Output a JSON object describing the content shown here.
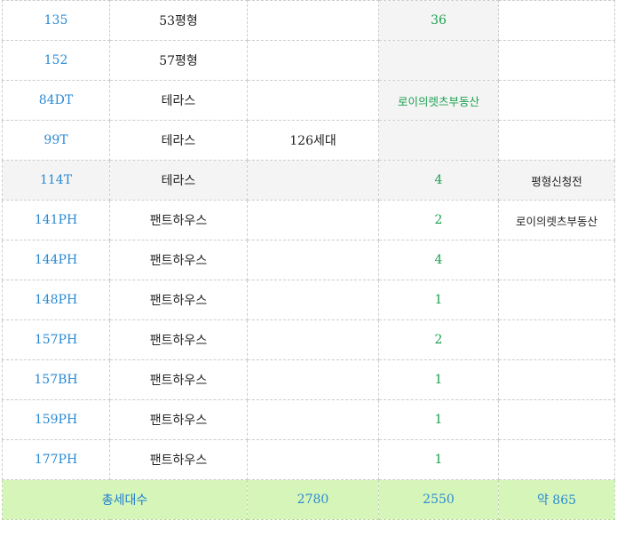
{
  "rows": [
    {
      "type": "135",
      "name": "53평형",
      "c3": "",
      "c4": "36",
      "c5": ""
    },
    {
      "type": "152",
      "name": "57평형",
      "c3": "",
      "c4": "",
      "c5": ""
    },
    {
      "type": "84DT",
      "name": "테라스",
      "c3": "",
      "c4": "로이의렛츠부동산",
      "c5": ""
    },
    {
      "type": "99T",
      "name": "테라스",
      "c3": "126세대",
      "c4": "",
      "c5": ""
    },
    {
      "type": "114T",
      "name": "테라스",
      "c3": "",
      "c4": "4",
      "c5": "평형신청전"
    },
    {
      "type": "141PH",
      "name": "팬트하우스",
      "c3": "",
      "c4": "2",
      "c5": "로이의렛츠부동산"
    },
    {
      "type": "144PH",
      "name": "팬트하우스",
      "c3": "",
      "c4": "4",
      "c5": ""
    },
    {
      "type": "148PH",
      "name": "팬트하우스",
      "c3": "",
      "c4": "1",
      "c5": ""
    },
    {
      "type": "157PH",
      "name": "팬트하우스",
      "c3": "",
      "c4": "2",
      "c5": ""
    },
    {
      "type": "157BH",
      "name": "팬트하우스",
      "c3": "",
      "c4": "1",
      "c5": ""
    },
    {
      "type": "159PH",
      "name": "팬트하우스",
      "c3": "",
      "c4": "1",
      "c5": ""
    },
    {
      "type": "177PH",
      "name": "팬트하우스",
      "c3": "",
      "c4": "1",
      "c5": ""
    }
  ],
  "total": {
    "label": "총세대수",
    "c3": "2780",
    "c4": "2550",
    "c5": "약 865"
  },
  "colors": {
    "type_text": "#2a8ad4",
    "highlight_text": "#1aa04f",
    "total_bg": "#d6f5b8",
    "gray_cell": "#f4f4f4"
  }
}
